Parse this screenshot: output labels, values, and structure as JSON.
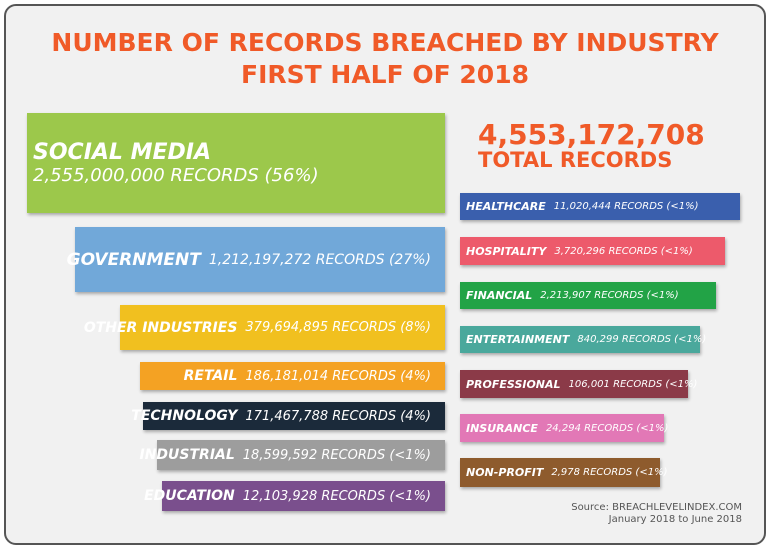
{
  "header": {
    "title_line1": "NUMBER OF RECORDS BREACHED BY INDUSTRY",
    "title_line2": "FIRST HALF OF 2018"
  },
  "total": {
    "value": "4,553,172,708",
    "label": "TOTAL RECORDS"
  },
  "left": [
    {
      "name": "SOCIAL MEDIA",
      "detail": "2,555,000,000 RECORDS (56%)",
      "color": "#9cc84b"
    },
    {
      "name": "GOVERNMENT",
      "detail": "1,212,197,272 RECORDS (27%)",
      "color": "#71a8d9"
    },
    {
      "name": "OTHER INDUSTRIES",
      "detail": "379,694,895 RECORDS (8%)",
      "color": "#f1c01f"
    },
    {
      "name": "RETAIL",
      "detail": "186,181,014 RECORDS (4%)",
      "color": "#f4a223"
    },
    {
      "name": "TECHNOLOGY",
      "detail": "171,467,788 RECORDS (4%)",
      "color": "#1b2a3a"
    },
    {
      "name": "INDUSTRIAL",
      "detail": "18,599,592 RECORDS (<1%)",
      "color": "#9d9d9d"
    },
    {
      "name": "EDUCATION",
      "detail": "12,103,928 RECORDS (<1%)",
      "color": "#7a4f8d"
    }
  ],
  "right": [
    {
      "name": "HEALTHCARE",
      "detail": "11,020,444 RECORDS (<1%)",
      "color": "#3a5fad"
    },
    {
      "name": "HOSPITALITY",
      "detail": "3,720,296 RECORDS (<1%)",
      "color": "#ed5a6b"
    },
    {
      "name": "FINANCIAL",
      "detail": "2,213,907 RECORDS (<1%)",
      "color": "#22a346"
    },
    {
      "name": "ENTERTAINMENT",
      "detail": "840,299 RECORDS (<1%)",
      "color": "#4aa89c"
    },
    {
      "name": "PROFESSIONAL",
      "detail": "106,001 RECORDS (<1%)",
      "color": "#8b3a48"
    },
    {
      "name": "INSURANCE",
      "detail": "24,294 RECORDS (<1%)",
      "color": "#e278b6"
    },
    {
      "name": "NON-PROFIT",
      "detail": "2,978 RECORDS (<1%)",
      "color": "#8e5b2d"
    }
  ],
  "source": {
    "line1": "Source: BREACHLEVELINDEX.COM",
    "line2": "January 2018 to June 2018"
  }
}
